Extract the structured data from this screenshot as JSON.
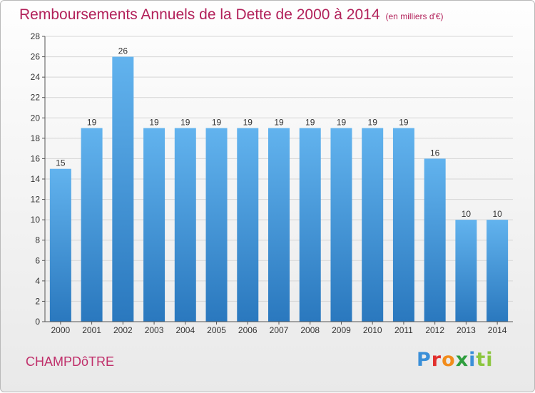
{
  "title": "Remboursements Annuels de la Dette de 2000 à 2014",
  "subtitle": "(en milliers d'€)",
  "footer": {
    "town": "CHAMPDôTRE",
    "brand": [
      "P",
      "r",
      "o",
      "x",
      "i",
      "ti"
    ]
  },
  "colors": {
    "title": "#b2215a",
    "bar": "#4a9de0",
    "bar_top": "#62b3ee",
    "bar_bottom": "#2a78be",
    "grid": "#d6d6d6"
  },
  "chart_data": {
    "type": "bar",
    "categories": [
      "2000",
      "2001",
      "2002",
      "2003",
      "2004",
      "2005",
      "2006",
      "2007",
      "2008",
      "2009",
      "2010",
      "2011",
      "2012",
      "2013",
      "2014"
    ],
    "values": [
      15,
      19,
      26,
      19,
      19,
      19,
      19,
      19,
      19,
      19,
      19,
      19,
      16,
      10,
      10
    ],
    "ylim": [
      0,
      28
    ],
    "yticks": [
      0,
      2,
      4,
      6,
      8,
      10,
      12,
      14,
      16,
      18,
      20,
      22,
      24,
      26,
      28
    ],
    "grid": true,
    "data_labels": true
  }
}
